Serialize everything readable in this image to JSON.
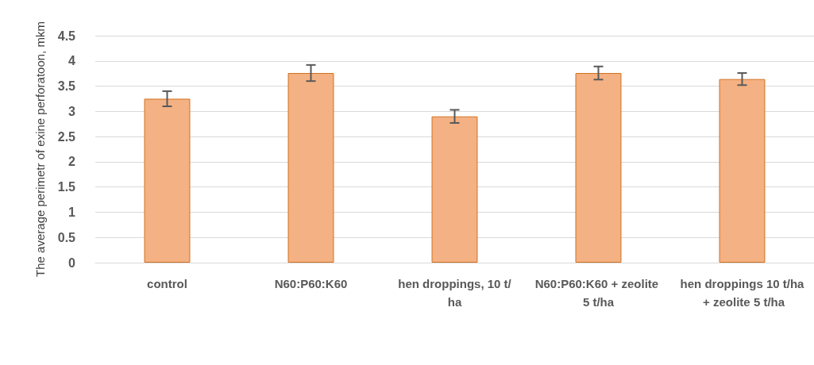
{
  "chart_data": {
    "type": "bar",
    "ylabel": "The average perimetr of exine perforatoon, mkm",
    "categories": [
      "control",
      "N60:P60:K60",
      "hen droppings, 10 t/ha",
      "N60:P60:K60 + zeolite 5 t/ha",
      "hen droppings 10 t/ha + zeolite 5 t/ha"
    ],
    "values": [
      3.25,
      3.76,
      2.9,
      3.76,
      3.64
    ],
    "errors": [
      0.15,
      0.16,
      0.13,
      0.13,
      0.12
    ],
    "color": "#f4b183",
    "ylim": [
      0,
      4.5
    ],
    "yticks": [
      0,
      0.5,
      1,
      1.5,
      2,
      2.5,
      3,
      3.5,
      4,
      4.5
    ],
    "grid": "y"
  }
}
